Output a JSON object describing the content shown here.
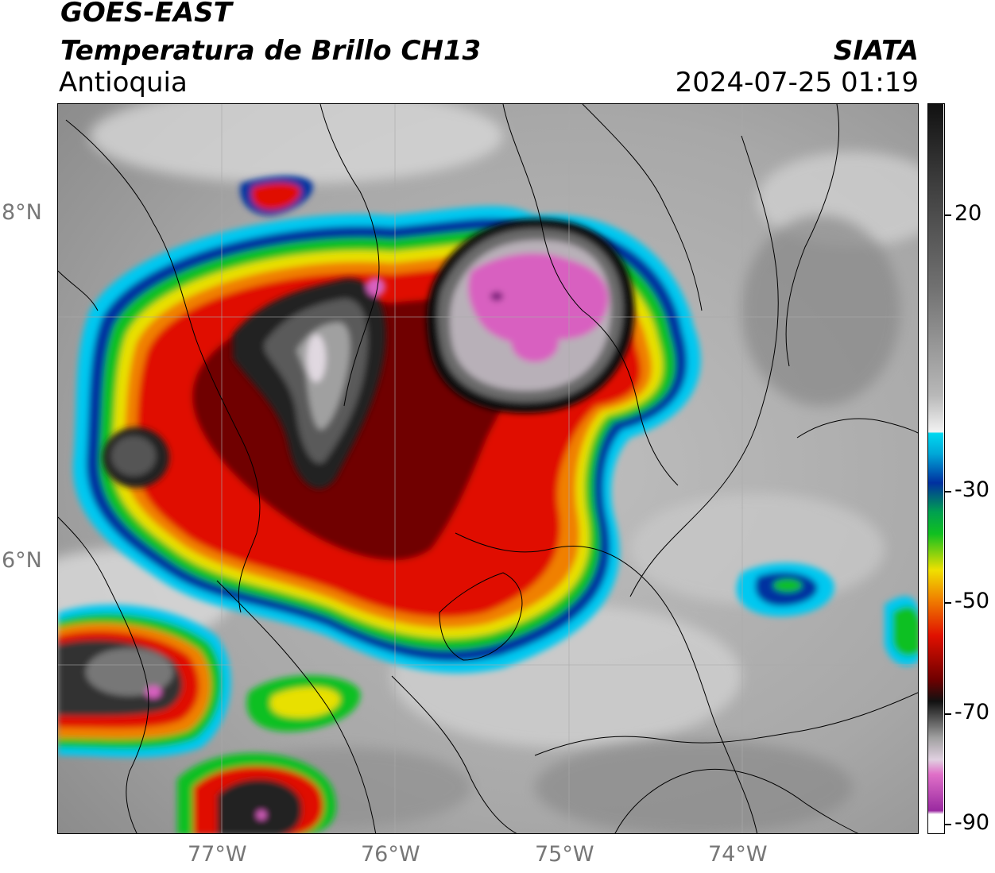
{
  "header": {
    "satellite": "GOES-EAST",
    "product": "Temperatura de Brillo CH13",
    "region": "Antioquia",
    "organization": "SIATA",
    "datetime": "2024-07-25 01:19"
  },
  "axes": {
    "y_labels": [
      "8°N",
      "6°N"
    ],
    "x_labels": [
      "77°W",
      "76°W",
      "75°W",
      "74°W"
    ]
  },
  "colorbar": {
    "ticks": [
      "20",
      "-30",
      "-50",
      "-70",
      "-90"
    ],
    "colors": {
      "black": "#111111",
      "pink": "#d85cc0",
      "purple": "#9a2aa0",
      "cyan": "#00d8f0",
      "blue": "#0030a0",
      "green": "#10c020",
      "yellow": "#f0e000",
      "orange": "#f08000",
      "red": "#e01000",
      "darkred": "#700000"
    }
  }
}
